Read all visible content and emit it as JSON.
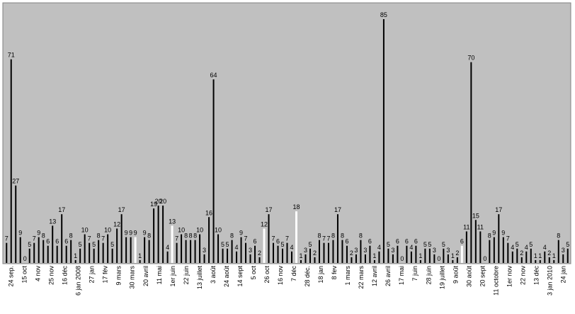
{
  "chart_data": {
    "type": "bar",
    "grid": false,
    "legend": "none",
    "ylim": [
      0,
      90
    ],
    "colors": {
      "plot_background": "#c0c0c0",
      "bar": "#000000",
      "highlight_edge": "#1f2a8a",
      "highlight_fill": "#ffffff"
    },
    "values": [
      7,
      71,
      27,
      9,
      0,
      5,
      7,
      9,
      8,
      6,
      13,
      6,
      17,
      6,
      8,
      1,
      5,
      10,
      7,
      5,
      8,
      7,
      10,
      5,
      12,
      17,
      9,
      9,
      9,
      1,
      9,
      8,
      19,
      20,
      20,
      4,
      13,
      7,
      10,
      8,
      8,
      8,
      10,
      3,
      16,
      64,
      10,
      5,
      5,
      8,
      4,
      9,
      7,
      3,
      6,
      2,
      12,
      17,
      7,
      6,
      5,
      7,
      4,
      18,
      1,
      3,
      5,
      2,
      8,
      7,
      7,
      8,
      17,
      8,
      6,
      2,
      3,
      8,
      3,
      6,
      1,
      4,
      85,
      5,
      3,
      6,
      0,
      6,
      4,
      6,
      1,
      5,
      5,
      3,
      0,
      5,
      3,
      1,
      2,
      6,
      11,
      70,
      15,
      11,
      0,
      8,
      9,
      17,
      9,
      7,
      4,
      5,
      2,
      4,
      5,
      1,
      1,
      4,
      2,
      1,
      8,
      3,
      5
    ],
    "highlighted_indices": [
      28,
      36,
      56,
      63,
      99
    ],
    "x_tick_labels": [
      "24 sep.",
      "15 oct",
      "4 nov",
      "25 nov",
      "16 déc",
      "6 jan 2008",
      "27 jan",
      "17 fév",
      "9 mars",
      "30 mars",
      "20 avril",
      "11 mai",
      "1er juin",
      "22 juin",
      "13 juillet",
      "3 août",
      "24 août",
      "14 sept",
      "5 oct",
      "26 oct",
      "16 nov",
      "7 déc",
      "28 déc.",
      "18 jan",
      "8 fev",
      "1 mars",
      "22 mars",
      "12 avril",
      "26 avril",
      "17 mai",
      "7 juin",
      "28 juin",
      "19 juillet",
      "9 août",
      "30 août",
      "20 sept",
      "11 octobre",
      "1er nov",
      "22 nov",
      "13 déc",
      "3 jan 2010",
      "24 jan"
    ]
  }
}
